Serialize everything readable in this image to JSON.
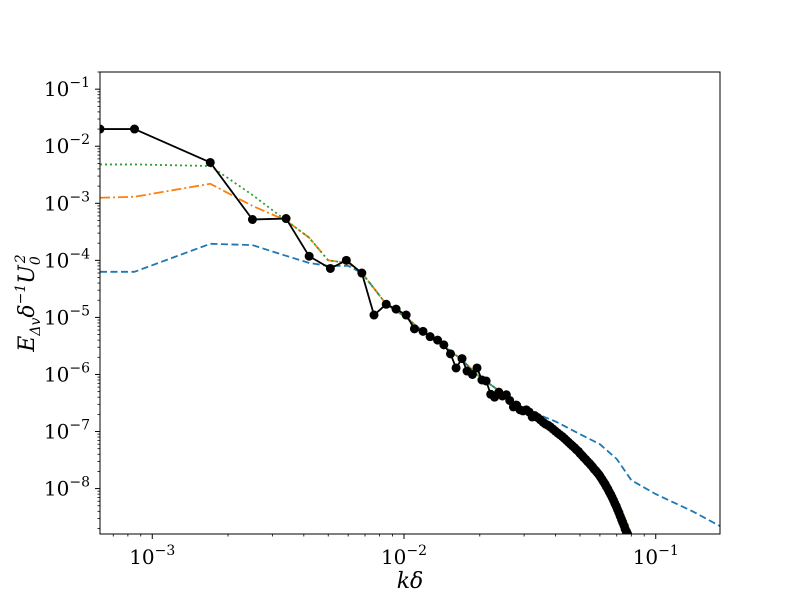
{
  "chart_data": {
    "type": "line",
    "title": "",
    "xlabel": "kδ",
    "ylabel": "E_{Δv} δ^{-1} U_0^2",
    "xscale": "log",
    "yscale": "log",
    "xlim": [
      0.00062,
      0.18
    ],
    "ylim": [
      1.6e-09,
      0.2
    ],
    "grid": false,
    "x_ticks": [
      {
        "value": 0.001,
        "base": "10",
        "exp": "−3"
      },
      {
        "value": 0.01,
        "base": "10",
        "exp": "−2"
      },
      {
        "value": 0.1,
        "base": "10",
        "exp": "−1"
      }
    ],
    "y_ticks": [
      {
        "value": 1e-08,
        "base": "10",
        "exp": "−8"
      },
      {
        "value": 1e-07,
        "base": "10",
        "exp": "−7"
      },
      {
        "value": 1e-06,
        "base": "10",
        "exp": "−6"
      },
      {
        "value": 1e-05,
        "base": "10",
        "exp": "−5"
      },
      {
        "value": 0.0001,
        "base": "10",
        "exp": "−4"
      },
      {
        "value": 0.001,
        "base": "10",
        "exp": "−3"
      },
      {
        "value": 0.01,
        "base": "10",
        "exp": "−2"
      },
      {
        "value": 0.1,
        "base": "10",
        "exp": "−1"
      }
    ],
    "series": [
      {
        "color": "#1f77b4",
        "style": "dashed",
        "marker": "none",
        "x": [
          0.00062,
          0.00085,
          0.0017,
          0.0025,
          0.0034,
          0.0042,
          0.005,
          0.006,
          0.0068,
          0.0077,
          0.0085,
          0.0093,
          0.0102,
          0.012,
          0.014,
          0.017,
          0.02,
          0.025,
          0.03,
          0.035,
          0.04,
          0.05,
          0.06,
          0.07,
          0.08,
          0.1,
          0.14,
          0.18
        ],
        "y": [
          6.3e-05,
          6.3e-05,
          0.000195,
          0.000185,
          0.00012,
          9e-05,
          8e-05,
          8e-05,
          6e-05,
          3e-05,
          1.7e-05,
          1.3e-05,
          1e-05,
          5.5e-06,
          3.5e-06,
          1.8e-06,
          9e-07,
          4.5e-07,
          2.7e-07,
          1.9e-07,
          1.5e-07,
          9e-08,
          6e-08,
          3.3e-08,
          1.4e-08,
          8e-09,
          4e-09,
          2.2e-09
        ]
      },
      {
        "color": "#ff7f0e",
        "style": "dashdot",
        "marker": "none",
        "x": [
          0.00062,
          0.00085,
          0.0017,
          0.0025,
          0.0034,
          0.0042,
          0.005,
          0.006,
          0.0068,
          0.0077,
          0.0085,
          0.0093,
          0.0102,
          0.012,
          0.014,
          0.017,
          0.02,
          0.025,
          0.03,
          0.035,
          0.04,
          0.05,
          0.06,
          0.07,
          0.076,
          0.08
        ],
        "y": [
          0.00125,
          0.0013,
          0.0022,
          0.0009,
          0.0005,
          0.00025,
          0.0001,
          9e-05,
          6e-05,
          3e-05,
          1.7e-05,
          1.3e-05,
          1e-05,
          5.5e-06,
          3.5e-06,
          1.8e-06,
          9e-07,
          4.5e-07,
          2.4e-07,
          1.5e-07,
          9e-08,
          4e-08,
          1.7e-08,
          6e-09,
          2.8e-09,
          1.6e-09
        ]
      },
      {
        "color": "#2ca02c",
        "style": "dotted",
        "marker": "none",
        "x": [
          0.00062,
          0.00085,
          0.0017,
          0.0025,
          0.0034,
          0.0042,
          0.005,
          0.006,
          0.0068,
          0.0077,
          0.0085,
          0.0093,
          0.0102,
          0.012,
          0.014,
          0.017,
          0.02,
          0.025,
          0.03,
          0.035,
          0.04,
          0.05,
          0.06,
          0.07,
          0.076,
          0.08
        ],
        "y": [
          0.0048,
          0.0048,
          0.0045,
          0.0014,
          0.0005,
          0.00025,
          0.0001,
          9e-05,
          6e-05,
          3e-05,
          1.7e-05,
          1.3e-05,
          1e-05,
          5.5e-06,
          3.5e-06,
          1.8e-06,
          9e-07,
          4.5e-07,
          2.4e-07,
          1.5e-07,
          9e-08,
          4e-08,
          1.7e-08,
          6e-09,
          2.8e-09,
          1.6e-09
        ]
      },
      {
        "color": "#000000",
        "style": "solid",
        "marker": "circle",
        "x": [
          0.00062,
          0.00085,
          0.0017,
          0.0025,
          0.0034,
          0.0042,
          0.0051,
          0.0059,
          0.0068,
          0.0076,
          0.0085,
          0.0093,
          0.0102,
          0.011,
          0.0119,
          0.0127,
          0.0136,
          0.0144,
          0.0153,
          0.0161,
          0.017,
          0.0178,
          0.0187,
          0.0195,
          0.0204,
          0.0212,
          0.0221,
          0.0229,
          0.0238,
          0.0246,
          0.0255,
          0.0263,
          0.0272,
          0.028,
          0.0289,
          0.0297,
          0.0306,
          0.0314,
          0.0323,
          0.0331,
          0.034,
          0.0348,
          0.0357,
          0.0365,
          0.0374,
          0.0382,
          0.0391,
          0.0399,
          0.0408,
          0.0416,
          0.0425,
          0.0433,
          0.0442,
          0.045,
          0.0459,
          0.0467,
          0.0476,
          0.0484,
          0.0493,
          0.0501,
          0.051,
          0.0518,
          0.0527,
          0.0535,
          0.0544,
          0.0552,
          0.0561,
          0.0569,
          0.0578,
          0.0586,
          0.0595,
          0.0603,
          0.0612,
          0.062,
          0.0629,
          0.0637,
          0.0646,
          0.0654,
          0.0663,
          0.0671,
          0.068,
          0.0688,
          0.0697,
          0.0705,
          0.0714,
          0.0722,
          0.0731,
          0.0739,
          0.0748,
          0.0756,
          0.0765,
          0.0773
        ],
        "y": [
          0.02,
          0.02,
          0.0052,
          0.00052,
          0.00054,
          0.000118,
          7.2e-05,
          0.0001,
          6e-05,
          1.1e-05,
          1.7e-05,
          1.4e-05,
          1.1e-05,
          6.3e-06,
          5.7e-06,
          4.6e-06,
          4e-06,
          3.3e-06,
          2.3e-06,
          1.3e-06,
          1.9e-06,
          1.15e-06,
          1e-06,
          1.3e-06,
          8e-07,
          7.7e-07,
          4.5e-07,
          4e-07,
          4.9e-07,
          4.2e-07,
          4.4e-07,
          3.5e-07,
          2.7e-07,
          2.9e-07,
          2.4e-07,
          2.3e-07,
          2.4e-07,
          2.2e-07,
          1.8e-07,
          1.9e-07,
          1.75e-07,
          1.6e-07,
          1.45e-07,
          1.35e-07,
          1.28e-07,
          1.2e-07,
          1.1e-07,
          1.02e-07,
          9.4e-08,
          8.8e-08,
          8.2e-08,
          7.6e-08,
          7e-08,
          6.5e-08,
          6e-08,
          5.6e-08,
          5.2e-08,
          4.8e-08,
          4.5e-08,
          4.1e-08,
          3.8e-08,
          3.5e-08,
          3.25e-08,
          3e-08,
          2.8e-08,
          2.6e-08,
          2.4e-08,
          2.2e-08,
          2.05e-08,
          1.9e-08,
          1.75e-08,
          1.6e-08,
          1.45e-08,
          1.32e-08,
          1.2e-08,
          1.08e-08,
          9.7e-09,
          8.7e-09,
          7.8e-09,
          7e-09,
          6.2e-09,
          5.5e-09,
          4.9e-09,
          4.3e-09,
          3.8e-09,
          3.3e-09,
          2.9e-09,
          2.55e-09,
          2.25e-09,
          1.95e-09,
          1.75e-09,
          1.6e-09
        ]
      }
    ]
  }
}
